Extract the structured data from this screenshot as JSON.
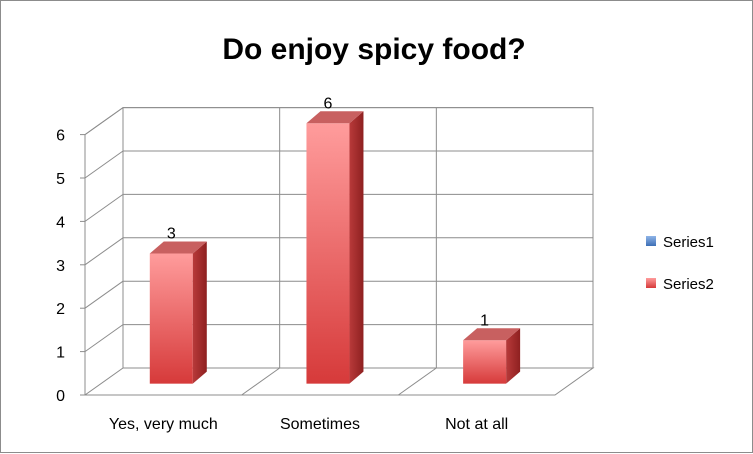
{
  "chart_data": {
    "type": "bar",
    "title": "Do enjoy spicy food?",
    "categories": [
      "Yes, very much",
      "Sometimes",
      "Not at all"
    ],
    "series": [
      {
        "name": "Series1",
        "values": [
          null,
          null,
          null
        ],
        "color": "#4f81bd"
      },
      {
        "name": "Series2",
        "values": [
          3,
          6,
          1
        ],
        "color": "#e05050"
      }
    ],
    "data_labels": [
      "3",
      "6",
      "1"
    ],
    "y_ticks": [
      "0",
      "1",
      "2",
      "3",
      "4",
      "5",
      "6"
    ],
    "ylim": [
      0,
      6
    ],
    "grid": true,
    "legend_position": "right",
    "style": "3d-column"
  }
}
